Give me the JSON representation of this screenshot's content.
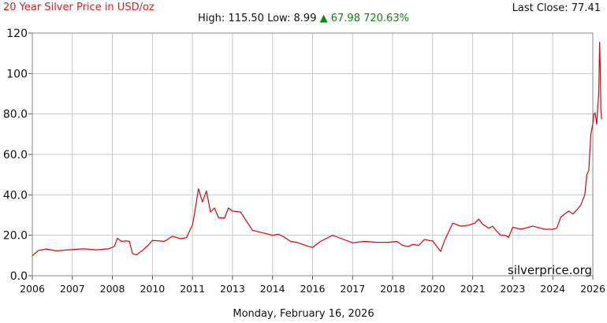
{
  "header": {
    "title": "20 Year Silver Price in USD/oz",
    "last_close_label": "Last Close:",
    "last_close_value": "77.41",
    "high_label": "High:",
    "high_value": "115.50",
    "low_label": "Low:",
    "low_value": "8.99",
    "change_arrow": "▲",
    "change_value": "67.98",
    "change_percent": "720.63%"
  },
  "footer": {
    "date": "Monday, February 16, 2026"
  },
  "watermark": "silverprice.org",
  "colors": {
    "line": "#e8000b",
    "title": "#e31a1c",
    "grid": "#c8c8c8",
    "change": "#0a8a0a"
  },
  "chart_data": {
    "type": "line",
    "title": "20 Year Silver Price in USD/oz",
    "xlabel": "",
    "ylabel": "",
    "x_tick_labels": [
      "2006",
      "2007",
      "2008",
      "2010",
      "2011",
      "2013",
      "2014",
      "2016",
      "2017",
      "2018",
      "2020",
      "2021",
      "2023",
      "2024",
      "2026"
    ],
    "y_tick_labels": [
      "0.0",
      "20.0",
      "40.0",
      "60.0",
      "80.0",
      "100",
      "120"
    ],
    "ylim": [
      0,
      120
    ],
    "grid": true,
    "series": [
      {
        "color": "#e8000b",
        "x": [
          2006.0,
          2006.15,
          2006.35,
          2006.6,
          2006.9,
          2007.1,
          2007.3,
          2007.6,
          2007.9,
          2008.1,
          2008.25,
          2008.45,
          2008.7,
          2008.85,
          2009.0,
          2009.2,
          2009.5,
          2009.8,
          2010.0,
          2010.3,
          2010.5,
          2010.7,
          2010.85,
          2011.0,
          2011.1,
          2011.3,
          2011.5,
          2011.7,
          2011.9,
          2012.1,
          2012.3,
          2012.6,
          2012.8,
          2013.0,
          2013.2,
          2013.5,
          2013.8,
          2014.0,
          2014.3,
          2014.6,
          2014.9,
          2015.2,
          2015.5,
          2015.8,
          2016.0,
          2016.2,
          2016.5,
          2016.7,
          2017.0,
          2017.3,
          2017.6,
          2017.9,
          2018.2,
          2018.5,
          2018.8,
          2019.0,
          2019.3,
          2019.6,
          2019.8,
          2020.0,
          2020.2,
          2020.3,
          2020.5,
          2020.7,
          2020.9,
          2021.1,
          2021.3,
          2021.5,
          2021.8,
          2022.0,
          2022.2,
          2022.4,
          2022.6,
          2022.8,
          2023.0,
          2023.2,
          2023.5,
          2023.8,
          2024.0,
          2024.2,
          2024.4,
          2024.6,
          2024.8,
          2025.0,
          2025.2,
          2025.4,
          2025.6,
          2025.7,
          2025.8,
          2025.9,
          2026.0,
          2026.05,
          2026.12,
          2026.15,
          2026.2,
          2026.25,
          2026.3,
          2026.34,
          2026.37,
          2026.4,
          2026.44
        ],
        "y": [
          9.8,
          12.5,
          13.2,
          12.3,
          12.8,
          13.1,
          13.3,
          12.8,
          13.3,
          14.5,
          18.5,
          17.0,
          17.2,
          17.0,
          11.0,
          10.3,
          12.5,
          15.2,
          17.5,
          17.0,
          19.5,
          18.3,
          18.8,
          25.0,
          30.5,
          43.0,
          36.5,
          42.0,
          31.5,
          33.5,
          28.8,
          28.5,
          33.5,
          32.0,
          31.5,
          22.5,
          21.0,
          20.0,
          20.5,
          19.0,
          17.0,
          16.5,
          15.5,
          14.5,
          14.0,
          17.0,
          20.0,
          18.5,
          16.3,
          17.0,
          16.5,
          16.5,
          17.0,
          15.0,
          14.5,
          15.5,
          15.0,
          18.0,
          17.5,
          17.2,
          12.0,
          17.5,
          26.0,
          24.5,
          25.0,
          26.0,
          28.0,
          25.5,
          23.5,
          24.5,
          22.0,
          20.0,
          20.0,
          19.0,
          24.0,
          23.0,
          24.5,
          23.0,
          23.0,
          23.5,
          29.0,
          30.5,
          32.0,
          30.5,
          32.5,
          35.0,
          40.0,
          50.0,
          52.0,
          70.0,
          75.0,
          80.0,
          80.5,
          78.0,
          75.0,
          84.0,
          90.0,
          115.5,
          105.0,
          82.0,
          77.41
        ]
      }
    ]
  }
}
